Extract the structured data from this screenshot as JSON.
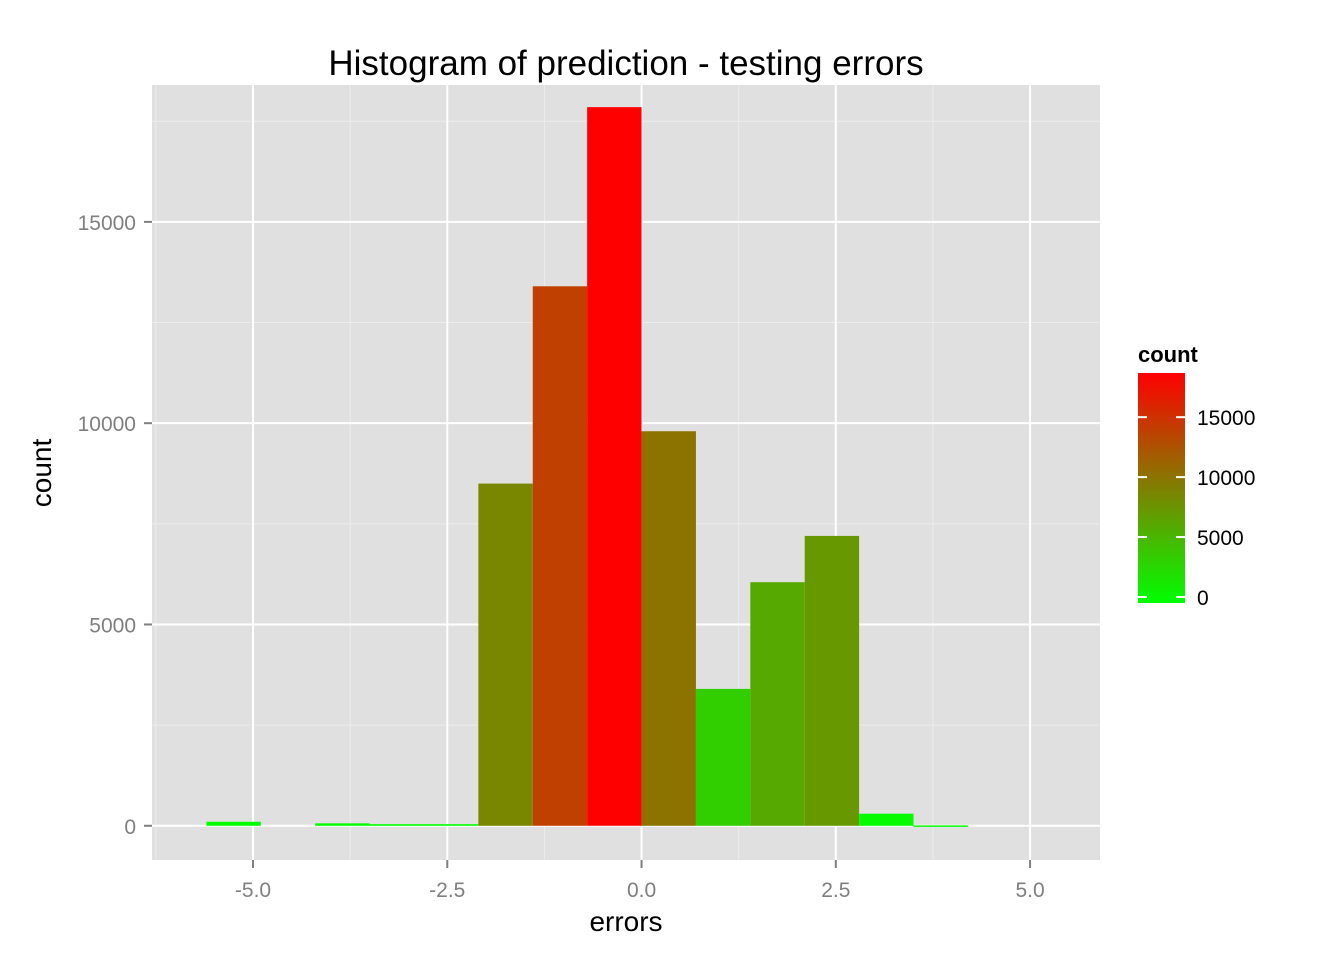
{
  "chart_data": {
    "type": "bar",
    "title": "Histogram of prediction - testing errors",
    "xlabel": "errors",
    "ylabel": "count",
    "xlim": [
      -6.3,
      5.9
    ],
    "ylim": [
      -850,
      18400
    ],
    "x_ticks": [
      -5.0,
      -2.5,
      0.0,
      2.5,
      5.0
    ],
    "x_tick_labels": [
      "-5.0",
      "-2.5",
      "0.0",
      "2.5",
      "5.0"
    ],
    "y_ticks": [
      0,
      5000,
      10000,
      15000
    ],
    "y_tick_labels": [
      "0",
      "5000",
      "10000",
      "15000"
    ],
    "grid": true,
    "bin_width": 0.7,
    "bins": [
      {
        "x_start": -5.6,
        "count": 100
      },
      {
        "x_start": -4.9,
        "count": 0
      },
      {
        "x_start": -4.2,
        "count": 60
      },
      {
        "x_start": -3.5,
        "count": 40
      },
      {
        "x_start": -2.8,
        "count": 40
      },
      {
        "x_start": -2.1,
        "count": 8500
      },
      {
        "x_start": -1.4,
        "count": 13400
      },
      {
        "x_start": -0.7,
        "count": 17850
      },
      {
        "x_start": 0.0,
        "count": 9800
      },
      {
        "x_start": 0.7,
        "count": 3400
      },
      {
        "x_start": 1.4,
        "count": 6050
      },
      {
        "x_start": 2.1,
        "count": 7200
      },
      {
        "x_start": 2.8,
        "count": 300
      },
      {
        "x_start": 3.5,
        "count": 10
      },
      {
        "x_start": 4.2,
        "count": 0
      }
    ],
    "fill_scale": {
      "low_color": "#00ff00",
      "high_color": "#ff0000",
      "domain": [
        0,
        17850
      ]
    },
    "legend": {
      "title": "count",
      "placement": "right",
      "ticks": [
        0,
        5000,
        10000,
        15000
      ],
      "labels": [
        "0",
        "5000",
        "10000",
        "15000"
      ]
    },
    "colors": {
      "panel_background": "#e0e0e0",
      "grid_major": "#ffffff",
      "grid_minor": "#ececec"
    }
  }
}
